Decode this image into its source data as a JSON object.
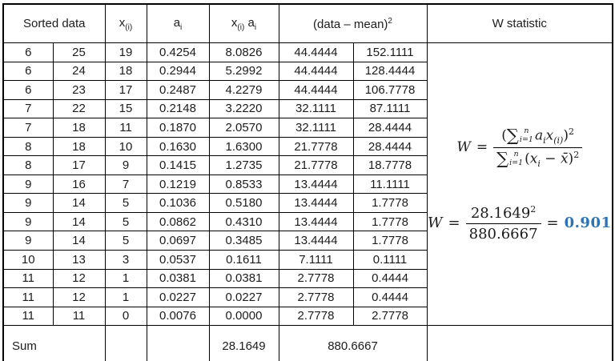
{
  "table": {
    "headers": {
      "sorted_data": "Sorted data",
      "x_base": "x",
      "x_sub": "(i)",
      "a_base": "a",
      "a_sub": "i",
      "xa_x_base": "x",
      "xa_x_sub": "(i)",
      "xa_a_base": "a",
      "xa_a_sub": "i",
      "data_mean": "(data – mean)",
      "data_mean_sup": "2",
      "w_statistic": "W statistic"
    },
    "rows": [
      [
        "6",
        "25",
        "19",
        "0.4254",
        "8.0826",
        "44.4444",
        "152.1111"
      ],
      [
        "6",
        "24",
        "18",
        "0.2944",
        "5.2992",
        "44.4444",
        "128.4444"
      ],
      [
        "6",
        "23",
        "17",
        "0.2487",
        "4.2279",
        "44.4444",
        "106.7778"
      ],
      [
        "7",
        "22",
        "15",
        "0.2148",
        "3.2220",
        "32.1111",
        "87.1111"
      ],
      [
        "7",
        "18",
        "11",
        "0.1870",
        "2.0570",
        "32.1111",
        "28.4444"
      ],
      [
        "8",
        "18",
        "10",
        "0.1630",
        "1.6300",
        "21.7778",
        "28.4444"
      ],
      [
        "8",
        "17",
        "9",
        "0.1415",
        "1.2735",
        "21.7778",
        "18.7778"
      ],
      [
        "9",
        "16",
        "7",
        "0.1219",
        "0.8533",
        "13.4444",
        "11.1111"
      ],
      [
        "9",
        "14",
        "5",
        "0.1036",
        "0.5180",
        "13.4444",
        "1.7778"
      ],
      [
        "9",
        "14",
        "5",
        "0.0862",
        "0.4310",
        "13.4444",
        "1.7778"
      ],
      [
        "9",
        "14",
        "5",
        "0.0697",
        "0.3485",
        "13.4444",
        "1.7778"
      ],
      [
        "10",
        "13",
        "3",
        "0.0537",
        "0.1611",
        "7.1111",
        "0.1111"
      ],
      [
        "11",
        "12",
        "1",
        "0.0381",
        "0.0381",
        "2.7778",
        "0.4444"
      ],
      [
        "11",
        "12",
        "1",
        "0.0227",
        "0.0227",
        "2.7778",
        "0.4444"
      ],
      [
        "11",
        "11",
        "0",
        "0.0076",
        "0.0000",
        "2.7778",
        "2.7778"
      ]
    ],
    "sum_row": {
      "label": "Sum",
      "xa_sum": "28.1649",
      "sq_sum": "880.6667"
    }
  },
  "formulas": {
    "general": {
      "lhs": "W",
      "equals": "=",
      "num": {
        "lparen": "(",
        "sigma": "∑",
        "upper": "n",
        "lower": "i=1",
        "a": "a",
        "a_sub": "i",
        "x": "x",
        "x_sub": "(i)",
        "rparen": ")",
        "power": "2"
      },
      "den": {
        "sigma": "∑",
        "upper": "n",
        "lower": "i=1",
        "lparen": "(",
        "x": "x",
        "x_sub": "i",
        "minus": "−",
        "xbar": "x̄",
        "rparen": ")",
        "power": "2"
      }
    },
    "computed": {
      "lhs": "W",
      "equals": "=",
      "num_value": "28.1649",
      "num_power": "2",
      "den_value": "880.6667",
      "equals2": "=",
      "result": "0.901"
    }
  },
  "colors": {
    "result_blue": "#2e74b5",
    "border": "#000000"
  }
}
